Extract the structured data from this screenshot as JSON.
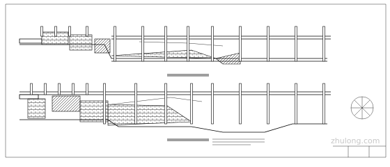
{
  "watermark": "zhulong.com"
}
